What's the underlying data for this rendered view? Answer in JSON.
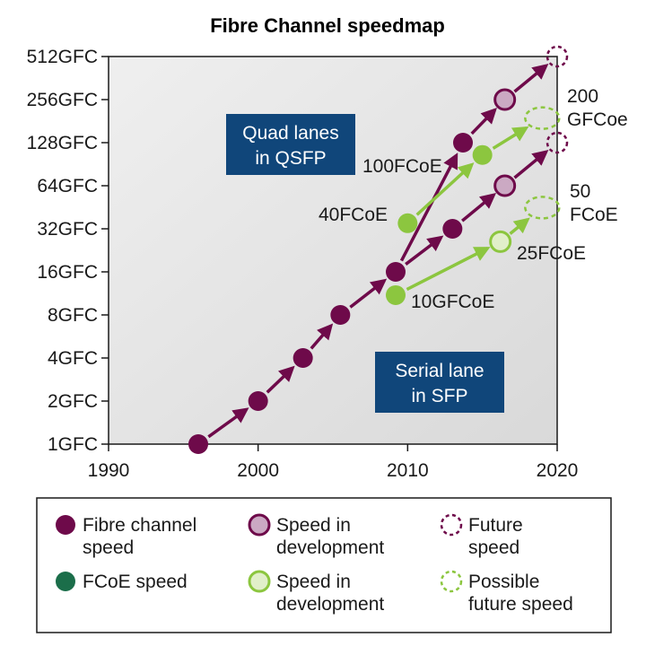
{
  "chart_data": {
    "type": "scatter",
    "title": "Fibre Channel speedmap",
    "xlabel": "",
    "ylabel": "",
    "xlim": [
      1990,
      2020
    ],
    "x_ticks": [
      1990,
      2000,
      2010,
      2020
    ],
    "y_scale": "log2",
    "y_ticks": [
      "1GFC",
      "2GFC",
      "4GFC",
      "8GFC",
      "16GFC",
      "32GFC",
      "64GFC",
      "128GFC",
      "256GFC",
      "512GFC"
    ],
    "grid": false,
    "background": "#e6e6e6",
    "colors": {
      "fibre": "#6e0a4a",
      "fibre_dev_fill": "#cba9c3",
      "fcoe": "#8cc63f",
      "fcoe_dev_fill": "#e1efc9",
      "legend_fcoe": "#1b6e4a",
      "box": "#10467a"
    },
    "series": [
      {
        "name": "Fibre channel speed",
        "marker": "solid",
        "points": [
          {
            "x": 1996,
            "y": 1
          },
          {
            "x": 2000,
            "y": 2
          },
          {
            "x": 2003,
            "y": 4
          },
          {
            "x": 2005.5,
            "y": 8
          },
          {
            "x": 2009.2,
            "y": 16
          },
          {
            "x": 2013,
            "y": 32
          },
          {
            "x": 2013.7,
            "y": 128
          }
        ]
      },
      {
        "name": "Speed in development",
        "marker": "development",
        "points": [
          {
            "x": 2016.5,
            "y": 64
          },
          {
            "x": 2016.5,
            "y": 256
          }
        ]
      },
      {
        "name": "Future speed",
        "marker": "future",
        "points": [
          {
            "x": 2020,
            "y": 128
          },
          {
            "x": 2020,
            "y": 512
          }
        ]
      },
      {
        "name": "FCoE speed",
        "marker": "solid",
        "points": [
          {
            "x": 2009.2,
            "y": 11,
            "label": "10GFCoE"
          },
          {
            "x": 2010,
            "y": 35,
            "label": "40FCoE"
          },
          {
            "x": 2015,
            "y": 105,
            "label": "100FCoE"
          }
        ]
      },
      {
        "name": "Speed in development",
        "marker": "development",
        "points": [
          {
            "x": 2016.2,
            "y": 26,
            "label": "25FCoE"
          }
        ]
      },
      {
        "name": "Possible future speed",
        "marker": "future",
        "points": [
          {
            "x": 2019,
            "y": 45,
            "label": "50 FCoE"
          },
          {
            "x": 2019,
            "y": 190,
            "label": "200 GFCoe"
          }
        ]
      }
    ],
    "annotations": {
      "quad_lanes": [
        "Quad lanes",
        "in QSFP"
      ],
      "serial_lane": [
        "Serial lane",
        "in SFP"
      ],
      "label_10gfcoe": "10GFCoE",
      "label_40fcoe": "40FCoE",
      "label_100fcoe": "100FCoE",
      "label_25fcoe": "25FCoE",
      "label_50fcoe": [
        "50",
        "FCoE"
      ],
      "label_200gfcoe": [
        "200",
        "GFCoe"
      ]
    },
    "legend": [
      {
        "lines": [
          "Fibre channel",
          "speed"
        ],
        "marker": "fibre-solid"
      },
      {
        "lines": [
          "Speed in",
          "development"
        ],
        "marker": "fibre-dev"
      },
      {
        "lines": [
          "Future",
          "speed"
        ],
        "marker": "fibre-future"
      },
      {
        "lines": [
          "FCoE speed"
        ],
        "marker": "fcoe-solid"
      },
      {
        "lines": [
          "Speed in",
          "development"
        ],
        "marker": "fcoe-dev"
      },
      {
        "lines": [
          "Possible",
          "future speed"
        ],
        "marker": "fcoe-future"
      }
    ]
  }
}
